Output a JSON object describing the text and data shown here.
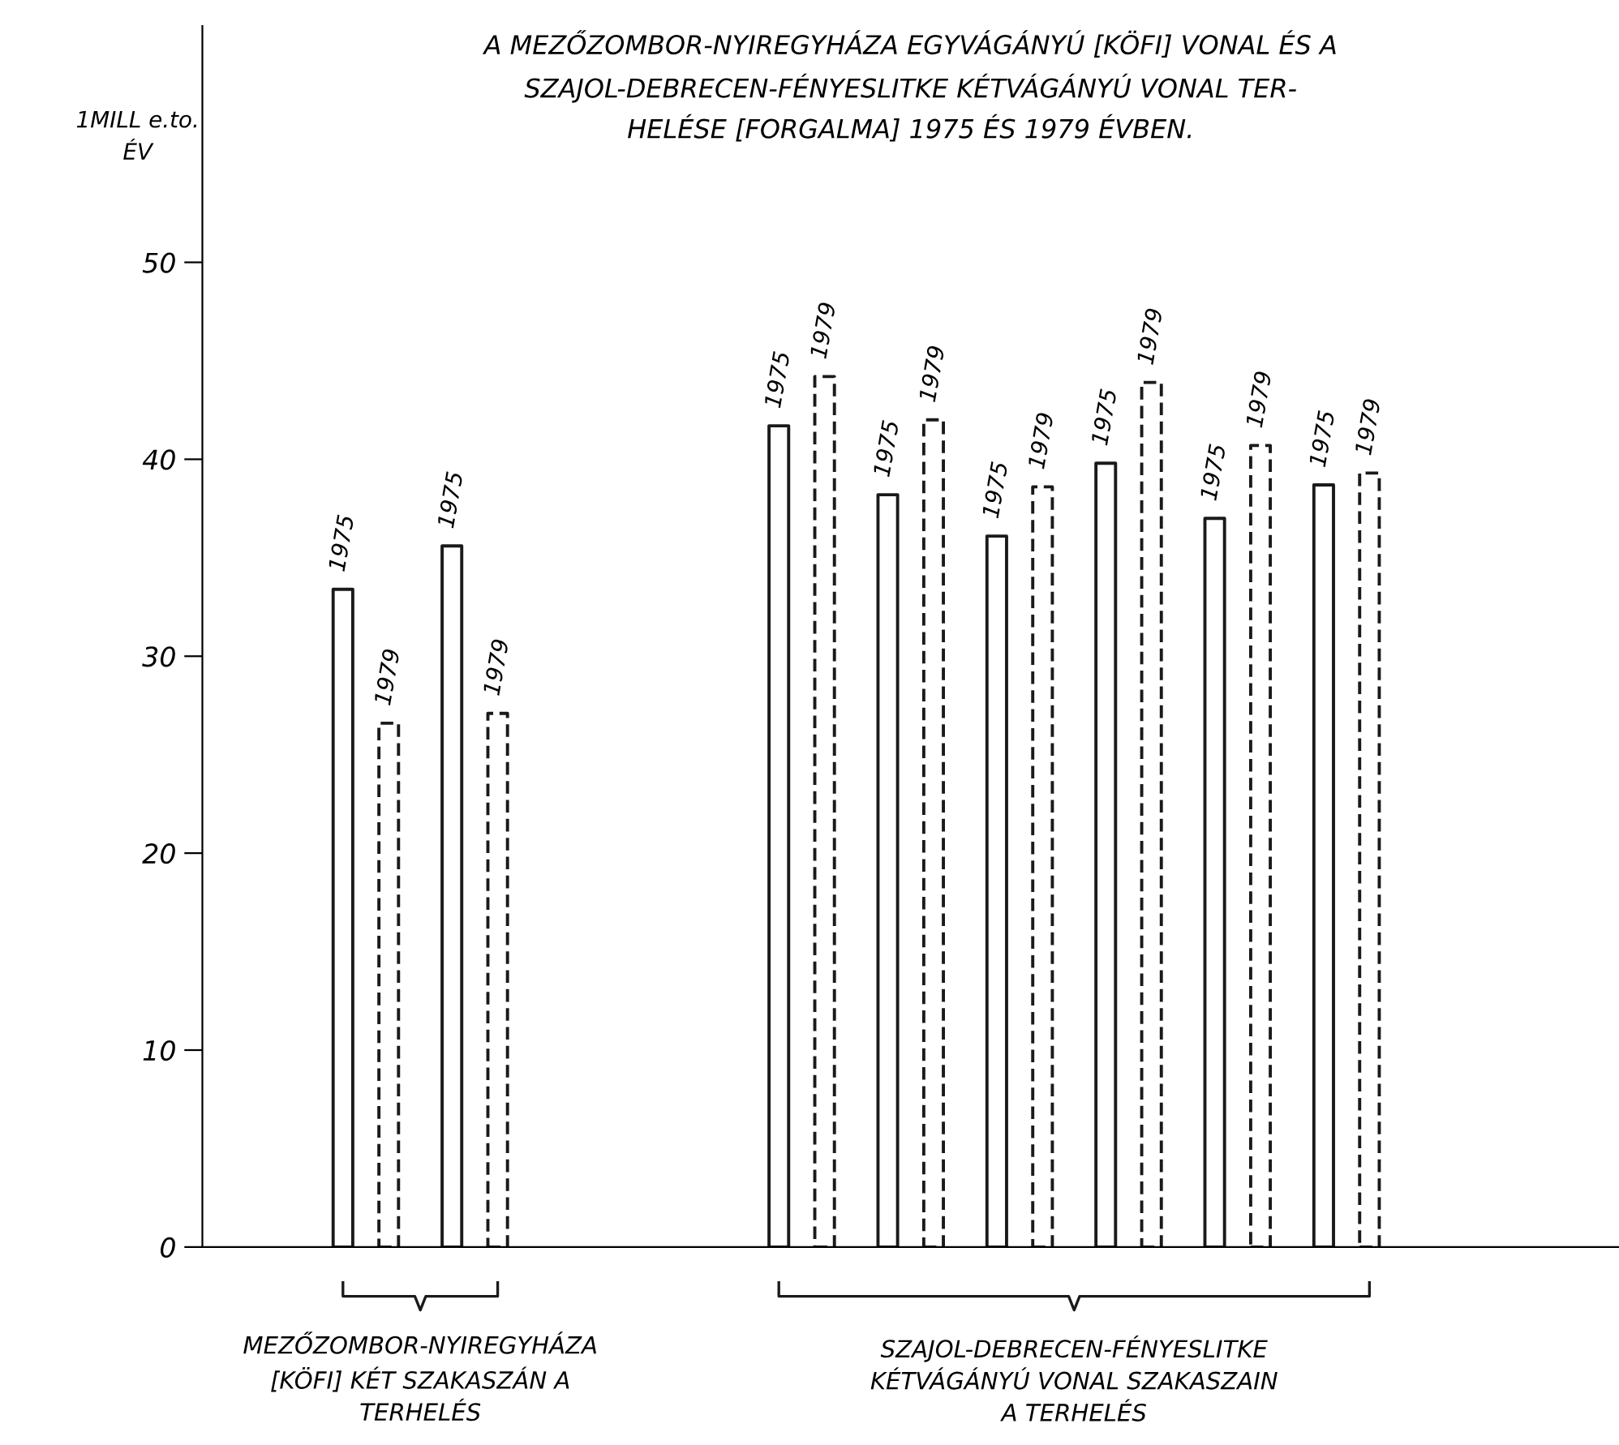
{
  "chart_data": {
    "type": "bar",
    "title": "A MEZŐZOMBOR-NYIREGYHÁZA EGYVÁGÁNYÚ [KÖFI] VONAL ÉS A\nSZAJOL-DEBRECEN-FÉNYESLITKE KÉTVÁGÁNYÚ VONAL TER-\nHELÉSE [FORGALMA] 1975 ÉS 1979 ÉVBEN.",
    "ylabel": "1MILL e.to.\nÉV",
    "categories": [
      null,
      null,
      null,
      null,
      null,
      null,
      null,
      null,
      null,
      null,
      null,
      null,
      null
    ],
    "series": [
      {
        "name": "1975",
        "color": "#1a1a1a",
        "line_style": "solid",
        "values": [
          null,
          33.4,
          35.6,
          null,
          null,
          41.7,
          38.2,
          36.1,
          39.8,
          37.0,
          38.7,
          null,
          null
        ]
      },
      {
        "name": "1979",
        "color": "#1a1a1a",
        "line_style": "dashed",
        "values": [
          null,
          26.6,
          27.1,
          null,
          null,
          44.2,
          42.0,
          38.6,
          43.9,
          40.7,
          39.3,
          null,
          null
        ]
      }
    ],
    "ylim": [
      0,
      62
    ],
    "yticks": [
      0,
      10,
      20,
      30,
      40,
      50
    ],
    "grid": false,
    "legend": false,
    "annotations": [
      "MEZŐZOMBOR-NYIREGYHÁZA\n[KÖFI] KÉT SZAKASZÁN A\nTERHELÉS",
      "SZAJOL-DEBRECEN-FÉNYESLITKE\nKÉTVÁGÁNYÚ VONAL SZAKASZAIN\nA TERHELÉS"
    ]
  }
}
